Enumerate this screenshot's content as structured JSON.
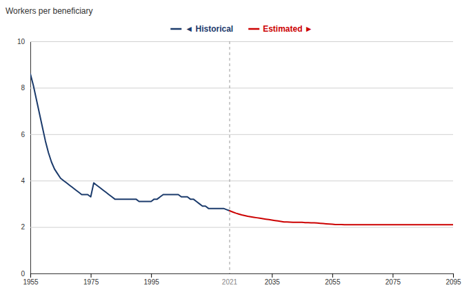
{
  "chart_data": {
    "type": "line",
    "y_label": "Workers per beneficiary",
    "x": [
      1955,
      1956,
      1957,
      1958,
      1959,
      1960,
      1961,
      1962,
      1963,
      1964,
      1965,
      1966,
      1967,
      1968,
      1969,
      1970,
      1971,
      1972,
      1973,
      1974,
      1975,
      1976,
      1977,
      1978,
      1979,
      1980,
      1981,
      1982,
      1983,
      1984,
      1985,
      1986,
      1987,
      1988,
      1989,
      1990,
      1991,
      1992,
      1993,
      1994,
      1995,
      1996,
      1997,
      1998,
      1999,
      2000,
      2001,
      2002,
      2003,
      2004,
      2005,
      2006,
      2007,
      2008,
      2009,
      2010,
      2011,
      2012,
      2013,
      2014,
      2015,
      2016,
      2017,
      2018,
      2019,
      2020,
      2021,
      2022,
      2023,
      2024,
      2025,
      2026,
      2027,
      2028,
      2029,
      2030,
      2031,
      2032,
      2033,
      2034,
      2035,
      2036,
      2037,
      2038,
      2039,
      2040,
      2041,
      2042,
      2043,
      2044,
      2045,
      2046,
      2047,
      2048,
      2049,
      2050,
      2051,
      2052,
      2053,
      2054,
      2055,
      2056,
      2057,
      2058,
      2059,
      2060,
      2061,
      2062,
      2063,
      2064,
      2065,
      2066,
      2067,
      2068,
      2069,
      2070,
      2071,
      2072,
      2073,
      2074,
      2075,
      2076,
      2077,
      2078,
      2079,
      2080,
      2081,
      2082,
      2083,
      2084,
      2085,
      2086,
      2087,
      2088,
      2089,
      2090,
      2091,
      2092,
      2093,
      2094,
      2095
    ],
    "series": [
      {
        "name": "◄ Historical",
        "color": "#1a3a6b",
        "values": [
          8.6,
          8.1,
          7.5,
          6.9,
          6.3,
          5.7,
          5.2,
          4.8,
          4.5,
          4.3,
          4.1,
          4.0,
          3.9,
          3.8,
          3.7,
          3.6,
          3.5,
          3.4,
          3.4,
          3.4,
          3.3,
          3.9,
          3.8,
          3.7,
          3.6,
          3.5,
          3.4,
          3.3,
          3.2,
          3.2,
          3.2,
          3.2,
          3.2,
          3.2,
          3.2,
          3.2,
          3.1,
          3.1,
          3.1,
          3.1,
          3.1,
          3.2,
          3.2,
          3.3,
          3.4,
          3.4,
          3.4,
          3.4,
          3.4,
          3.4,
          3.3,
          3.3,
          3.3,
          3.2,
          3.2,
          3.1,
          3.0,
          2.9,
          2.9,
          2.8,
          2.8,
          2.8,
          2.8,
          2.8,
          2.8,
          2.75,
          2.7,
          null,
          null,
          null,
          null,
          null,
          null,
          null,
          null,
          null,
          null,
          null,
          null,
          null,
          null,
          null,
          null,
          null,
          null,
          null,
          null,
          null,
          null,
          null,
          null,
          null,
          null,
          null,
          null,
          null,
          null,
          null,
          null,
          null,
          null,
          null,
          null,
          null,
          null,
          null,
          null,
          null,
          null,
          null,
          null,
          null,
          null,
          null,
          null,
          null,
          null,
          null,
          null,
          null,
          null,
          null,
          null,
          null,
          null,
          null,
          null,
          null,
          null,
          null,
          null,
          null,
          null,
          null,
          null,
          null,
          null,
          null,
          null,
          null,
          null
        ]
      },
      {
        "name": "Estimated ►",
        "color": "#cc0000",
        "values": [
          null,
          null,
          null,
          null,
          null,
          null,
          null,
          null,
          null,
          null,
          null,
          null,
          null,
          null,
          null,
          null,
          null,
          null,
          null,
          null,
          null,
          null,
          null,
          null,
          null,
          null,
          null,
          null,
          null,
          null,
          null,
          null,
          null,
          null,
          null,
          null,
          null,
          null,
          null,
          null,
          null,
          null,
          null,
          null,
          null,
          null,
          null,
          null,
          null,
          null,
          null,
          null,
          null,
          null,
          null,
          null,
          null,
          null,
          null,
          null,
          null,
          null,
          null,
          null,
          null,
          null,
          2.7,
          2.65,
          2.6,
          2.56,
          2.52,
          2.49,
          2.46,
          2.44,
          2.42,
          2.4,
          2.38,
          2.36,
          2.34,
          2.32,
          2.3,
          2.28,
          2.26,
          2.24,
          2.22,
          2.22,
          2.21,
          2.2,
          2.2,
          2.2,
          2.2,
          2.19,
          2.19,
          2.18,
          2.18,
          2.17,
          2.16,
          2.15,
          2.14,
          2.13,
          2.12,
          2.11,
          2.11,
          2.11,
          2.1,
          2.1,
          2.1,
          2.1,
          2.1,
          2.1,
          2.1,
          2.1,
          2.1,
          2.1,
          2.1,
          2.1,
          2.1,
          2.1,
          2.1,
          2.1,
          2.1,
          2.1,
          2.1,
          2.1,
          2.1,
          2.1,
          2.1,
          2.1,
          2.1,
          2.1,
          2.1,
          2.1,
          2.1,
          2.1,
          2.1,
          2.1,
          2.1,
          2.1,
          2.1,
          2.1,
          2.1
        ]
      }
    ],
    "xlim": [
      1955,
      2095
    ],
    "xticks": [
      1955,
      1975,
      1995,
      2035,
      2055,
      2075,
      2095
    ],
    "ylim": [
      0,
      10
    ],
    "yticks": [
      0,
      2,
      4,
      6,
      8,
      10
    ],
    "grid": true,
    "legend": "top",
    "annotations": [
      {
        "x": 2021,
        "text": "2021"
      }
    ]
  }
}
